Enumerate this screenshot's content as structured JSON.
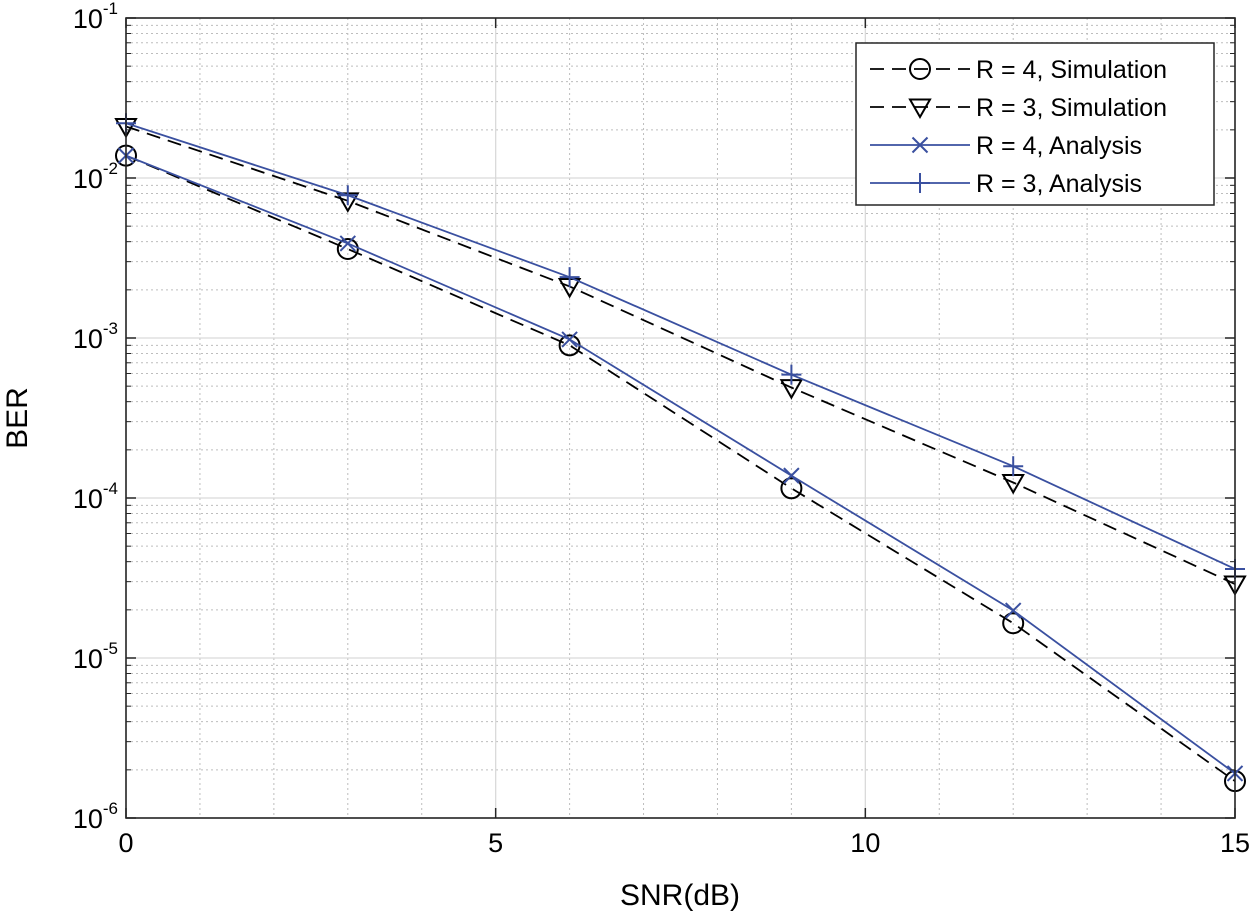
{
  "chart_data": {
    "type": "line",
    "title": "",
    "xlabel": "SNR(dB)",
    "ylabel": "BER",
    "xscale": "linear",
    "yscale": "log",
    "xlim": [
      0,
      15
    ],
    "ylim": [
      1e-06,
      0.1
    ],
    "grid": true,
    "minor_grid": true,
    "legend_position": "top-right",
    "x_ticks": [
      {
        "value": 0,
        "label": "0"
      },
      {
        "value": 5,
        "label": "5"
      },
      {
        "value": 10,
        "label": "10"
      },
      {
        "value": 15,
        "label": "15"
      }
    ],
    "y_ticks": [
      {
        "value": 1e-06,
        "base": "10",
        "exp": "-6"
      },
      {
        "value": 1e-05,
        "base": "10",
        "exp": "-5"
      },
      {
        "value": 0.0001,
        "base": "10",
        "exp": "-4"
      },
      {
        "value": 0.001,
        "base": "10",
        "exp": "-3"
      },
      {
        "value": 0.01,
        "base": "10",
        "exp": "-2"
      },
      {
        "value": 0.1,
        "base": "10",
        "exp": "-1"
      }
    ],
    "x": [
      0,
      3,
      6,
      9,
      12,
      15
    ],
    "series": [
      {
        "name": "R = 4, Simulation",
        "color": "#000000",
        "line_style": "dashed",
        "marker": "circle",
        "values": [
          0.0138,
          0.0036,
          0.0009,
          0.000115,
          1.65e-05,
          1.7e-06
        ]
      },
      {
        "name": "R = 3, Simulation",
        "color": "#000000",
        "line_style": "dashed",
        "marker": "triangle-down",
        "values": [
          0.021,
          0.0072,
          0.0021,
          0.00049,
          0.000125,
          2.9e-05
        ]
      },
      {
        "name": "R = 4, Analysis",
        "color": "#3a50a0",
        "line_style": "solid",
        "marker": "x",
        "values": [
          0.0138,
          0.0039,
          0.00098,
          0.000138,
          1.98e-05,
          1.9e-06
        ]
      },
      {
        "name": "R = 3, Analysis",
        "color": "#3a50a0",
        "line_style": "solid",
        "marker": "plus",
        "values": [
          0.022,
          0.0078,
          0.0024,
          0.00059,
          0.000158,
          3.6e-05
        ]
      }
    ]
  }
}
